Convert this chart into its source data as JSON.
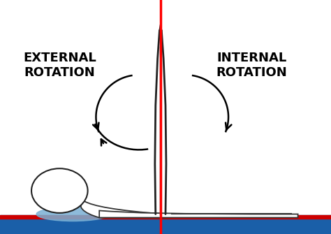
{
  "bg_color": "#ffffff",
  "red_line_x": 0.5,
  "red_line_color": "#ff0000",
  "table_color": "#1a5fa8",
  "table_top_color": "#cc0000",
  "pillow_color": "#7ab0d4",
  "text_external": "EXTERNAL\nROTATION",
  "text_internal": "INTERNAL\nROTATION",
  "text_color": "#000000",
  "text_fontsize": 13,
  "arrow_color": "#000000",
  "figsize": [
    4.74,
    3.35
  ],
  "dpi": 100
}
